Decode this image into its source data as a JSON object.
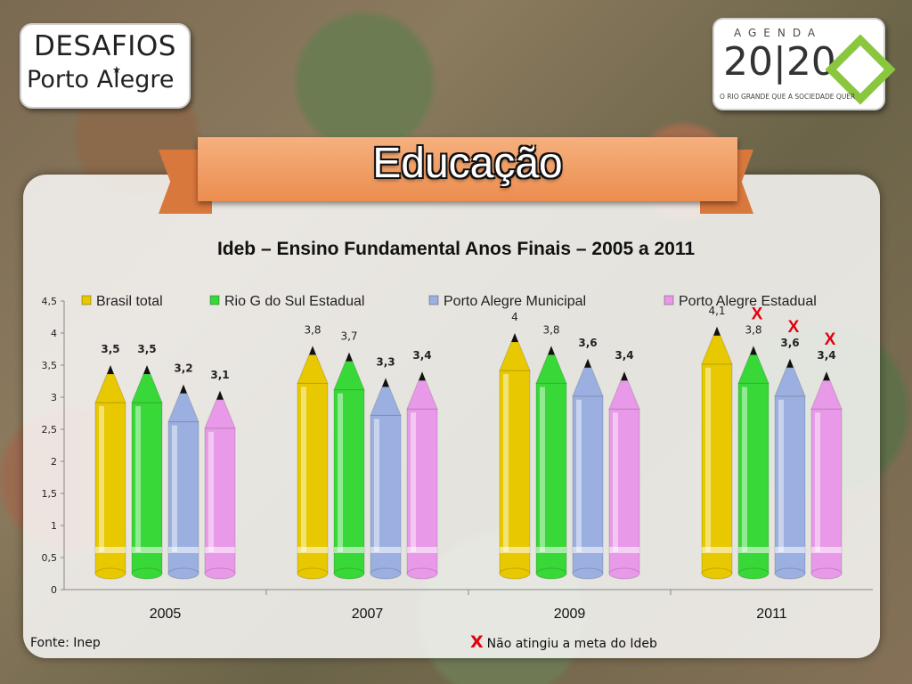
{
  "logos": {
    "left": {
      "line1": "DESAFIOS",
      "line2": "Porto Alegre"
    },
    "right": {
      "agenda": "AGENDA",
      "year": "20|20",
      "subtitle": "O RIO GRANDE QUE A SOCIEDADE QUER"
    }
  },
  "banner": {
    "title": "Educação"
  },
  "chart_data": {
    "type": "bar",
    "title": "Ideb – Ensino Fundamental Anos Finais – 2005 a 2011",
    "categories": [
      "2005",
      "2007",
      "2009",
      "2011"
    ],
    "ylim": [
      0,
      4.5
    ],
    "yticks": [
      "0",
      "0,5",
      "1",
      "1,5",
      "2",
      "2,5",
      "3",
      "3,5",
      "4",
      "4,5"
    ],
    "legend_position": "top",
    "series": [
      {
        "name": "Brasil total",
        "color": "#e8c800",
        "values": [
          3.5,
          3.8,
          4.0,
          4.1
        ],
        "labels": [
          "3,5",
          "3,8",
          "4",
          "4,1"
        ],
        "missed_target": [
          false,
          false,
          false,
          false
        ]
      },
      {
        "name": "Rio G do Sul Estadual",
        "color": "#38d838",
        "values": [
          3.5,
          3.7,
          3.8,
          3.8
        ],
        "labels": [
          "3,5",
          "3,7",
          "3,8",
          "3,8"
        ],
        "missed_target": [
          false,
          false,
          false,
          true
        ]
      },
      {
        "name": "Porto Alegre Municipal",
        "color": "#9bb0e0",
        "values": [
          3.2,
          3.3,
          3.6,
          3.6
        ],
        "labels": [
          "3,2",
          "3,3",
          "3,6",
          "3,6"
        ],
        "missed_target": [
          false,
          false,
          false,
          true
        ]
      },
      {
        "name": "Porto Alegre Estadual",
        "color": "#e89ae8",
        "values": [
          3.1,
          3.4,
          3.4,
          3.4
        ],
        "labels": [
          "3,1",
          "3,4",
          "3,4",
          "3,4"
        ],
        "missed_target": [
          false,
          false,
          false,
          true
        ]
      }
    ],
    "marker_symbol": "X"
  },
  "footer": {
    "source": "Fonte: Inep",
    "legend_marker": "X",
    "legend_text": "Não atingiu a meta do Ideb"
  }
}
